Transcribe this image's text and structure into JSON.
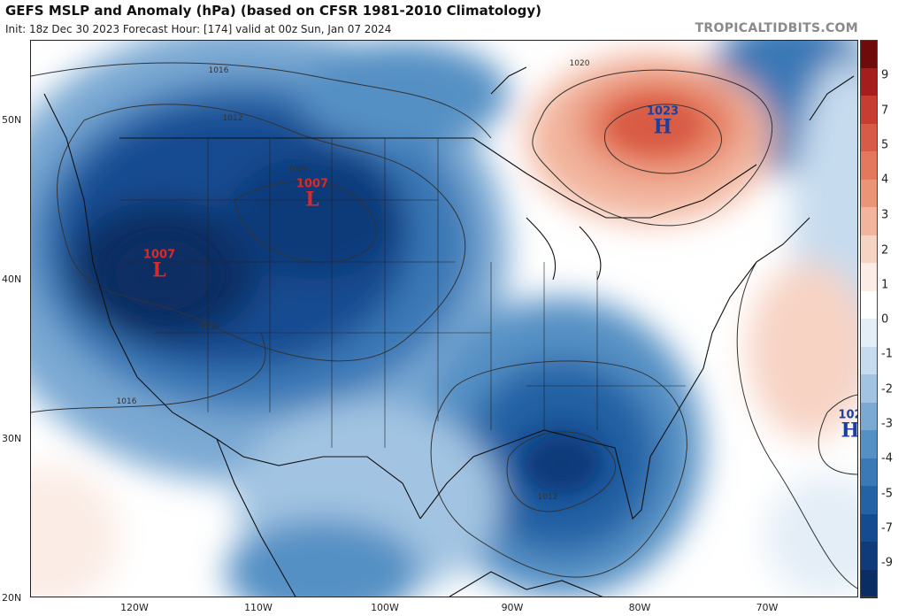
{
  "header": {
    "title": "GEFS MSLP and Anomaly (hPa) (based on CFSR 1981-2010 Climatology)",
    "subtitle": "Init: 18z Dec 30 2023   Forecast Hour: [174]   valid at 00z Sun, Jan 07 2024",
    "credit": "TROPICALTIDBITS.COM"
  },
  "axes": {
    "lat_labels": [
      "50N",
      "40N",
      "30N",
      "20N"
    ],
    "lon_labels": [
      "120W",
      "110W",
      "100W",
      "90W",
      "80W",
      "70W"
    ]
  },
  "colorbar": {
    "labels": [
      "9",
      "7",
      "5",
      "4",
      "3",
      "2",
      "1",
      "0",
      "-1",
      "-2",
      "-3",
      "-4",
      "-5",
      "-7",
      "-9"
    ],
    "colors": [
      "#6f0b0b",
      "#a51d1d",
      "#c83d32",
      "#d85c45",
      "#e3785c",
      "#eb9577",
      "#f2b49c",
      "#f7d3c4",
      "#fbece5",
      "#ffffff",
      "#e4eef7",
      "#c6dbee",
      "#a2c4e2",
      "#7aa9d3",
      "#5590c4",
      "#3a78b6",
      "#2362a5",
      "#154c91",
      "#0f3b7a",
      "#0a2d63"
    ]
  },
  "systems": [
    {
      "type": "L",
      "value": "1007"
    },
    {
      "type": "L",
      "value": "1007"
    },
    {
      "type": "H",
      "value": "1023"
    },
    {
      "type": "H",
      "value": "102"
    }
  ],
  "isobar_labels": [
    "1016",
    "1012",
    "1008",
    "1012",
    "1016",
    "1012",
    "1020"
  ]
}
